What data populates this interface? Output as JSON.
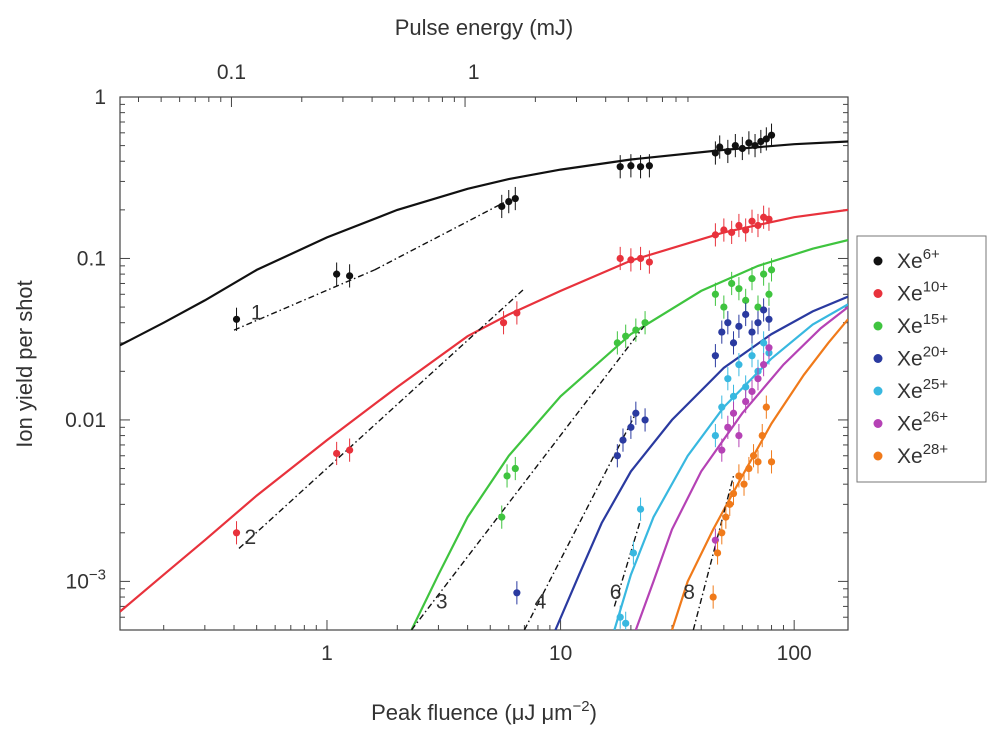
{
  "chart_data": {
    "type": "scatter",
    "x_scale": "log",
    "y_scale": "log",
    "xlim": [
      0.13,
      170
    ],
    "ylim": [
      0.0005,
      1
    ],
    "xlabel_pre": "Peak fluence (μJ μm",
    "xlabel_sup": "−2",
    "xlabel_post": ")",
    "ylabel": "Ion yield per shot",
    "top_axis": {
      "label": "Pulse energy (mJ)",
      "ticks": [
        {
          "x": 0.39,
          "label": "0.1"
        },
        {
          "x": 4.25,
          "label": "1"
        }
      ]
    },
    "x_ticks": [
      {
        "value": 1,
        "label": "1"
      },
      {
        "value": 10,
        "label": "10"
      },
      {
        "value": 100,
        "label": "100"
      }
    ],
    "y_ticks": [
      {
        "value": 1,
        "label": "1",
        "sup": ""
      },
      {
        "value": 0.1,
        "label": "0.1",
        "sup": ""
      },
      {
        "value": 0.01,
        "label": "0.01",
        "sup": ""
      },
      {
        "value": 0.001,
        "label": "10",
        "sup": "−3"
      }
    ],
    "legend": {
      "position": "right"
    },
    "series": [
      {
        "name": "Xe",
        "charge": "6+",
        "color": "#111111",
        "curve": [
          [
            0.13,
            0.029
          ],
          [
            0.2,
            0.04
          ],
          [
            0.3,
            0.055
          ],
          [
            0.5,
            0.085
          ],
          [
            1,
            0.135
          ],
          [
            2,
            0.2
          ],
          [
            4,
            0.27
          ],
          [
            6,
            0.31
          ],
          [
            10,
            0.355
          ],
          [
            20,
            0.41
          ],
          [
            50,
            0.47
          ],
          [
            100,
            0.51
          ],
          [
            170,
            0.53
          ]
        ],
        "fit": {
          "x": [
            0.4,
            1.6
          ],
          "y": [
            0.036,
            0.085
          ]
        },
        "fit2": {
          "x": [
            1.6,
            6.0
          ],
          "y": [
            0.085,
            0.23
          ]
        },
        "fit_label": "1",
        "fit_label_pos": [
          0.5,
          0.042
        ],
        "points": [
          [
            0.41,
            0.042
          ],
          [
            1.1,
            0.08
          ],
          [
            1.25,
            0.078
          ],
          [
            5.6,
            0.21
          ],
          [
            6.0,
            0.225
          ],
          [
            6.4,
            0.235
          ],
          [
            18,
            0.37
          ],
          [
            20,
            0.375
          ],
          [
            22,
            0.37
          ],
          [
            24,
            0.375
          ],
          [
            46,
            0.45
          ],
          [
            48,
            0.49
          ],
          [
            52,
            0.46
          ],
          [
            56,
            0.5
          ],
          [
            60,
            0.48
          ],
          [
            64,
            0.52
          ],
          [
            68,
            0.5
          ],
          [
            72,
            0.53
          ],
          [
            76,
            0.55
          ],
          [
            80,
            0.58
          ]
        ]
      },
      {
        "name": "Xe",
        "charge": "10+",
        "color": "#e8323c",
        "curve": [
          [
            0.13,
            0.00065
          ],
          [
            0.2,
            0.0011
          ],
          [
            0.3,
            0.0018
          ],
          [
            0.5,
            0.0034
          ],
          [
            1,
            0.0075
          ],
          [
            2,
            0.016
          ],
          [
            4,
            0.033
          ],
          [
            6,
            0.045
          ],
          [
            10,
            0.063
          ],
          [
            20,
            0.097
          ],
          [
            50,
            0.145
          ],
          [
            100,
            0.18
          ],
          [
            170,
            0.2
          ]
        ],
        "fit": {
          "x": [
            0.42,
            7.0
          ],
          "y": [
            0.0016,
            0.065
          ]
        },
        "fit_label": "2",
        "fit_label_pos": [
          0.47,
          0.0017
        ],
        "points": [
          [
            0.41,
            0.002
          ],
          [
            1.1,
            0.0062
          ],
          [
            1.25,
            0.0065
          ],
          [
            5.7,
            0.04
          ],
          [
            6.5,
            0.046
          ],
          [
            18,
            0.1
          ],
          [
            20,
            0.098
          ],
          [
            22,
            0.1
          ],
          [
            24,
            0.095
          ],
          [
            46,
            0.14
          ],
          [
            50,
            0.15
          ],
          [
            54,
            0.145
          ],
          [
            58,
            0.16
          ],
          [
            62,
            0.15
          ],
          [
            66,
            0.17
          ],
          [
            70,
            0.16
          ],
          [
            74,
            0.18
          ],
          [
            78,
            0.175
          ]
        ]
      },
      {
        "name": "Xe",
        "charge": "15+",
        "color": "#3fc43f",
        "curve": [
          [
            2.3,
            0.0005
          ],
          [
            3,
            0.0011
          ],
          [
            4,
            0.0025
          ],
          [
            6,
            0.006
          ],
          [
            10,
            0.014
          ],
          [
            20,
            0.034
          ],
          [
            40,
            0.063
          ],
          [
            70,
            0.09
          ],
          [
            120,
            0.115
          ],
          [
            170,
            0.13
          ]
        ],
        "fit": {
          "x": [
            2.3,
            24
          ],
          "y": [
            0.0005,
            0.042
          ]
        },
        "fit_label": "3",
        "fit_label_pos": [
          3.1,
          0.00068
        ],
        "points": [
          [
            5.6,
            0.0025
          ],
          [
            5.9,
            0.0045
          ],
          [
            6.4,
            0.005
          ],
          [
            17.5,
            0.03
          ],
          [
            19,
            0.033
          ],
          [
            21,
            0.036
          ],
          [
            23,
            0.04
          ],
          [
            46,
            0.06
          ],
          [
            50,
            0.05
          ],
          [
            54,
            0.07
          ],
          [
            58,
            0.065
          ],
          [
            62,
            0.055
          ],
          [
            66,
            0.075
          ],
          [
            70,
            0.05
          ],
          [
            74,
            0.08
          ],
          [
            78,
            0.06
          ],
          [
            80,
            0.085
          ]
        ]
      },
      {
        "name": "Xe",
        "charge": "20+",
        "color": "#2a3aa0",
        "curve": [
          [
            9.5,
            0.0005
          ],
          [
            12,
            0.0011
          ],
          [
            15,
            0.0023
          ],
          [
            20,
            0.0048
          ],
          [
            30,
            0.01
          ],
          [
            50,
            0.021
          ],
          [
            80,
            0.034
          ],
          [
            120,
            0.047
          ],
          [
            170,
            0.058
          ]
        ],
        "fit": {
          "x": [
            7.0,
            21
          ],
          "y": [
            0.0005,
            0.011
          ]
        },
        "fit_label": "4",
        "fit_label_pos": [
          8.2,
          0.00068
        ],
        "points": [
          [
            6.5,
            0.00085
          ],
          [
            17.5,
            0.006
          ],
          [
            18.5,
            0.0075
          ],
          [
            20,
            0.009
          ],
          [
            21,
            0.011
          ],
          [
            23,
            0.01
          ],
          [
            46,
            0.025
          ],
          [
            49,
            0.035
          ],
          [
            52,
            0.04
          ],
          [
            55,
            0.03
          ],
          [
            58,
            0.038
          ],
          [
            62,
            0.045
          ],
          [
            66,
            0.035
          ],
          [
            70,
            0.04
          ],
          [
            74,
            0.048
          ],
          [
            78,
            0.042
          ]
        ]
      },
      {
        "name": "Xe",
        "charge": "25+",
        "color": "#38b8e0",
        "curve": [
          [
            17,
            0.0005
          ],
          [
            20,
            0.0011
          ],
          [
            25,
            0.0025
          ],
          [
            35,
            0.006
          ],
          [
            50,
            0.012
          ],
          [
            80,
            0.024
          ],
          [
            120,
            0.039
          ],
          [
            170,
            0.052
          ]
        ],
        "fit": {
          "x": [
            17,
            22
          ],
          "y": [
            0.0007,
            0.0024
          ]
        },
        "fit_label": "6",
        "fit_label_pos": [
          17.2,
          0.00078
        ],
        "points": [
          [
            18,
            0.0006
          ],
          [
            19,
            0.00055
          ],
          [
            20.5,
            0.0015
          ],
          [
            22,
            0.0028
          ],
          [
            46,
            0.008
          ],
          [
            49,
            0.012
          ],
          [
            52,
            0.018
          ],
          [
            55,
            0.014
          ],
          [
            58,
            0.022
          ],
          [
            62,
            0.016
          ],
          [
            66,
            0.025
          ],
          [
            70,
            0.02
          ],
          [
            74,
            0.03
          ],
          [
            78,
            0.026
          ]
        ]
      },
      {
        "name": "Xe",
        "charge": "26+",
        "color": "#b542b5",
        "curve": [
          [
            21,
            0.0005
          ],
          [
            25,
            0.001
          ],
          [
            30,
            0.0021
          ],
          [
            40,
            0.0048
          ],
          [
            60,
            0.011
          ],
          [
            90,
            0.022
          ],
          [
            130,
            0.037
          ],
          [
            170,
            0.05
          ]
        ],
        "points": [
          [
            46,
            0.0018
          ],
          [
            49,
            0.0065
          ],
          [
            52,
            0.009
          ],
          [
            55,
            0.011
          ],
          [
            58,
            0.008
          ],
          [
            62,
            0.013
          ],
          [
            66,
            0.015
          ],
          [
            70,
            0.018
          ],
          [
            74,
            0.022
          ],
          [
            78,
            0.028
          ]
        ]
      },
      {
        "name": "Xe",
        "charge": "28+",
        "color": "#f07a1a",
        "curve": [
          [
            30,
            0.0005
          ],
          [
            35,
            0.001
          ],
          [
            45,
            0.0021
          ],
          [
            60,
            0.0045
          ],
          [
            80,
            0.0095
          ],
          [
            110,
            0.019
          ],
          [
            140,
            0.03
          ],
          [
            170,
            0.042
          ]
        ],
        "fit": {
          "x": [
            37,
            55
          ],
          "y": [
            0.0005,
            0.0045
          ]
        },
        "fit_label": "8",
        "fit_label_pos": [
          35.5,
          0.00078
        ],
        "points": [
          [
            45,
            0.0008
          ],
          [
            47,
            0.0015
          ],
          [
            49,
            0.002
          ],
          [
            51,
            0.0025
          ],
          [
            53,
            0.003
          ],
          [
            55,
            0.0035
          ],
          [
            58,
            0.0045
          ],
          [
            61,
            0.004
          ],
          [
            64,
            0.005
          ],
          [
            67,
            0.006
          ],
          [
            70,
            0.0055
          ],
          [
            73,
            0.008
          ],
          [
            76,
            0.012
          ],
          [
            80,
            0.0055
          ]
        ]
      }
    ]
  }
}
